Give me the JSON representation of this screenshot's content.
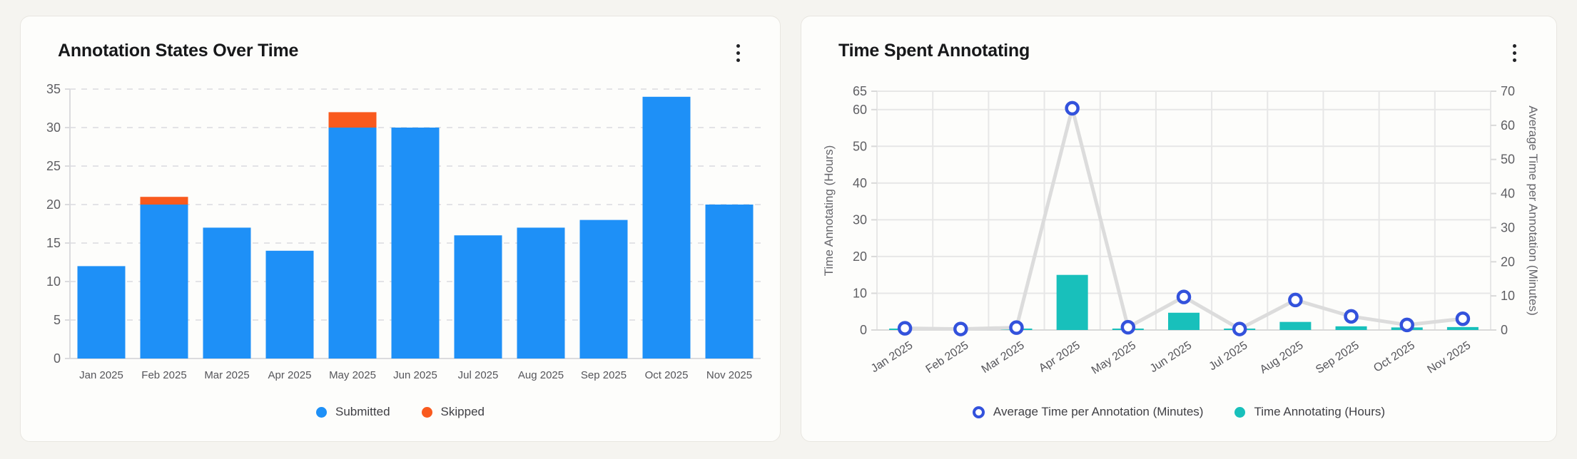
{
  "page": {
    "background": "#F5F4F0",
    "card_background": "#FDFDFB",
    "card_border": "#E8E6E0"
  },
  "chart_data": [
    {
      "type": "bar",
      "stacked": true,
      "title": "Annotation States Over Time",
      "categories": [
        "Jan 2025",
        "Feb 2025",
        "Mar 2025",
        "Apr 2025",
        "May 2025",
        "Jun 2025",
        "Jul 2025",
        "Aug 2025",
        "Sep 2025",
        "Oct 2025",
        "Nov 2025"
      ],
      "series": [
        {
          "name": "Submitted",
          "color": "#1E90F7",
          "values": [
            12,
            20,
            17,
            14,
            30,
            30,
            16,
            17,
            18,
            34,
            20
          ]
        },
        {
          "name": "Skipped",
          "color": "#F95A1E",
          "values": [
            0,
            1,
            0,
            0,
            2,
            0,
            0,
            0,
            0,
            0,
            0
          ]
        }
      ],
      "ylim": [
        0,
        35
      ],
      "yticks": [
        0,
        5,
        10,
        15,
        20,
        25,
        30,
        35
      ],
      "grid": "dashed-horizontal",
      "legend_position": "bottom",
      "styles": {
        "grid_color": "#E3E3E6",
        "axis_color": "#DBDBDE",
        "tick_color": "#5F5F63",
        "xlabel_color": "#55555A"
      }
    },
    {
      "type": "combo",
      "title": "Time Spent Annotating",
      "categories": [
        "Jan 2025",
        "Feb 2025",
        "Mar 2025",
        "Apr 2025",
        "May 2025",
        "Jun 2025",
        "Jul 2025",
        "Aug 2025",
        "Sep 2025",
        "Oct 2025",
        "Nov 2025"
      ],
      "series": [
        {
          "name": "Average Time per Annotation (Minutes)",
          "type": "line",
          "axis": "right",
          "marker": "open-circle",
          "marker_color": "#3352DC",
          "line_color": "#DCDCDC",
          "values": [
            0.5,
            0.3,
            0.7,
            65,
            0.8,
            9.7,
            0.3,
            8.8,
            4,
            1.5,
            3.3
          ]
        },
        {
          "name": "Time Annotating (Hours)",
          "type": "bar",
          "axis": "left",
          "color": "#18C0BB",
          "values": [
            0.1,
            0.1,
            0.1,
            15,
            0.3,
            4.7,
            0.05,
            2.2,
            1,
            0.7,
            0.8
          ]
        }
      ],
      "left_axis": {
        "label": "Time Annotating (Hours)",
        "max": 65,
        "ticks": [
          0,
          10,
          20,
          30,
          40,
          50,
          60,
          65
        ]
      },
      "right_axis": {
        "label": "Average Time per Annotation (Minutes)",
        "max": 70,
        "ticks": [
          0,
          10,
          20,
          30,
          40,
          50,
          60,
          70
        ]
      },
      "grid": "solid-both",
      "legend_position": "bottom",
      "styles": {
        "grid_color": "#E7E7E7",
        "axis_color": "#D9D9D9",
        "tick_color": "#5F5F63",
        "xlabel_color": "#55555A",
        "axis_label_color": "#66666B"
      }
    }
  ]
}
